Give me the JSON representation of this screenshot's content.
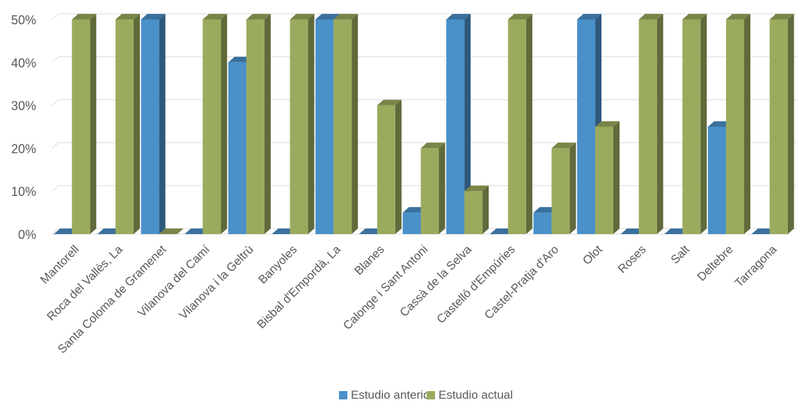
{
  "chart_data": {
    "type": "bar",
    "categories": [
      "Mantorell",
      "Roca del Vallès, La",
      "Santa Coloma de Gramenet",
      "Vilanova del Camí",
      "Vilanova i la Geltrù",
      "Banyoles",
      "Bisbal d'Empordà, La",
      "Blanes",
      "Calonge i Sant Antoni",
      "Cassà de la Selva",
      "Castelló d'Empúries",
      "Castel-Pratja d'Aro",
      "Olot",
      "Roses",
      "Salt",
      "Deltebre",
      "Tarragona"
    ],
    "series": [
      {
        "name": "Estudio anterior",
        "color": "#4A90C9",
        "values": [
          0,
          0,
          50,
          0,
          40,
          0,
          50,
          0,
          5,
          50,
          0,
          5,
          50,
          0,
          0,
          25,
          0
        ]
      },
      {
        "name": "Estudio actual",
        "color": "#9BAB5E",
        "values": [
          50,
          50,
          0,
          50,
          50,
          50,
          50,
          30,
          20,
          10,
          50,
          20,
          25,
          50,
          50,
          50,
          50
        ]
      }
    ],
    "y_ticks": [
      "0%",
      "10%",
      "20%",
      "30%",
      "40%",
      "50%"
    ],
    "ylim": [
      0,
      50
    ],
    "y_unit": "%",
    "grid": true,
    "legend_position": "bottom",
    "title": "",
    "xlabel": "",
    "ylabel": ""
  }
}
